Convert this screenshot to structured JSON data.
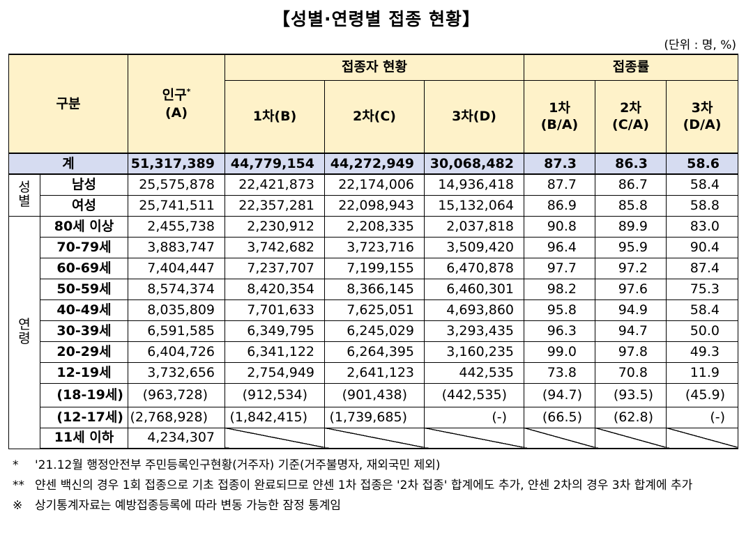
{
  "title": "【성별·연령별 접종 현황】",
  "unit": "(단위 : 명, %)",
  "header": {
    "category": "구분",
    "population": "인구",
    "population_mark": "*",
    "population_code": "(A)",
    "status_group": "접종자 현황",
    "rate_group": "접종률",
    "dose1": "1차(B)",
    "dose2": "2차(C)",
    "dose3": "3차(D)",
    "rate1_a": "1차",
    "rate1_b": "(B/A)",
    "rate2_a": "2차",
    "rate2_b": "(C/A)",
    "rate3_a": "3차",
    "rate3_b": "(D/A)"
  },
  "total": {
    "label": "계",
    "values": [
      "51,317,389",
      "44,779,154",
      "44,272,949",
      "30,068,482",
      "87.3",
      "86.3",
      "58.6"
    ]
  },
  "gender_group": "성별",
  "age_group": "연령",
  "gender_rows": [
    {
      "label": "남성",
      "values": [
        "25,575,878",
        "22,421,873",
        "22,174,006",
        "14,936,418",
        "87.7",
        "86.7",
        "58.4"
      ]
    },
    {
      "label": "여성",
      "values": [
        "25,741,511",
        "22,357,281",
        "22,098,943",
        "15,132,064",
        "86.9",
        "85.8",
        "58.8"
      ]
    }
  ],
  "age_rows": [
    {
      "label": "80세 이상",
      "values": [
        "2,455,738",
        "2,230,912",
        "2,208,335",
        "2,037,818",
        "90.8",
        "89.9",
        "83.0"
      ]
    },
    {
      "label": "70-79세",
      "values": [
        "3,883,747",
        "3,742,682",
        "3,723,716",
        "3,509,420",
        "96.4",
        "95.9",
        "90.4"
      ]
    },
    {
      "label": "60-69세",
      "values": [
        "7,404,447",
        "7,237,707",
        "7,199,155",
        "6,470,878",
        "97.7",
        "97.2",
        "87.4"
      ]
    },
    {
      "label": "50-59세",
      "values": [
        "8,574,374",
        "8,420,354",
        "8,366,145",
        "6,460,301",
        "98.2",
        "97.6",
        "75.3"
      ]
    },
    {
      "label": "40-49세",
      "values": [
        "8,035,809",
        "7,701,633",
        "7,625,051",
        "4,693,860",
        "95.8",
        "94.9",
        "58.4"
      ]
    },
    {
      "label": "30-39세",
      "values": [
        "6,591,585",
        "6,349,795",
        "6,245,029",
        "3,293,435",
        "96.3",
        "94.7",
        "50.0"
      ]
    },
    {
      "label": "20-29세",
      "values": [
        "6,404,726",
        "6,341,122",
        "6,264,395",
        "3,160,235",
        "99.0",
        "97.8",
        "49.3"
      ]
    },
    {
      "label": "12-19세",
      "values": [
        "3,732,656",
        "2,754,949",
        "2,641,123",
        "442,535",
        "73.8",
        "70.8",
        "11.9"
      ]
    }
  ],
  "sub_rows": [
    {
      "label": "(18-19세)",
      "values": [
        "(963,728)",
        "(912,534)",
        "(901,438)",
        "(442,535)",
        "(94.7)",
        "(93.5)",
        "(45.9)"
      ]
    },
    {
      "label": "(12-17세)",
      "values": [
        "(2,768,928)",
        "(1,842,415)",
        "(1,739,685)",
        "(-)",
        "(66.5)",
        "(62.8)",
        "(-)"
      ]
    }
  ],
  "under11": {
    "label": "11세 이하",
    "population": "4,234,307"
  },
  "notes": [
    {
      "mark": "*",
      "text": "'21.12월 행정안전부 주민등록인구현황(거주자) 기준(거주불명자, 재외국민 제외)"
    },
    {
      "mark": "**",
      "text": "얀센 백신의 경우 1회 접종으로 기초 접종이 완료되므로 얀센 1차 접종은 '2차 접종' 합계에도 추가, 얀센 2차의 경우 3차 합계에 추가"
    },
    {
      "mark": "※",
      "text": "상기통계자료는 예방접종등록에 따라 변동 가능한 잠정 통계임"
    }
  ]
}
